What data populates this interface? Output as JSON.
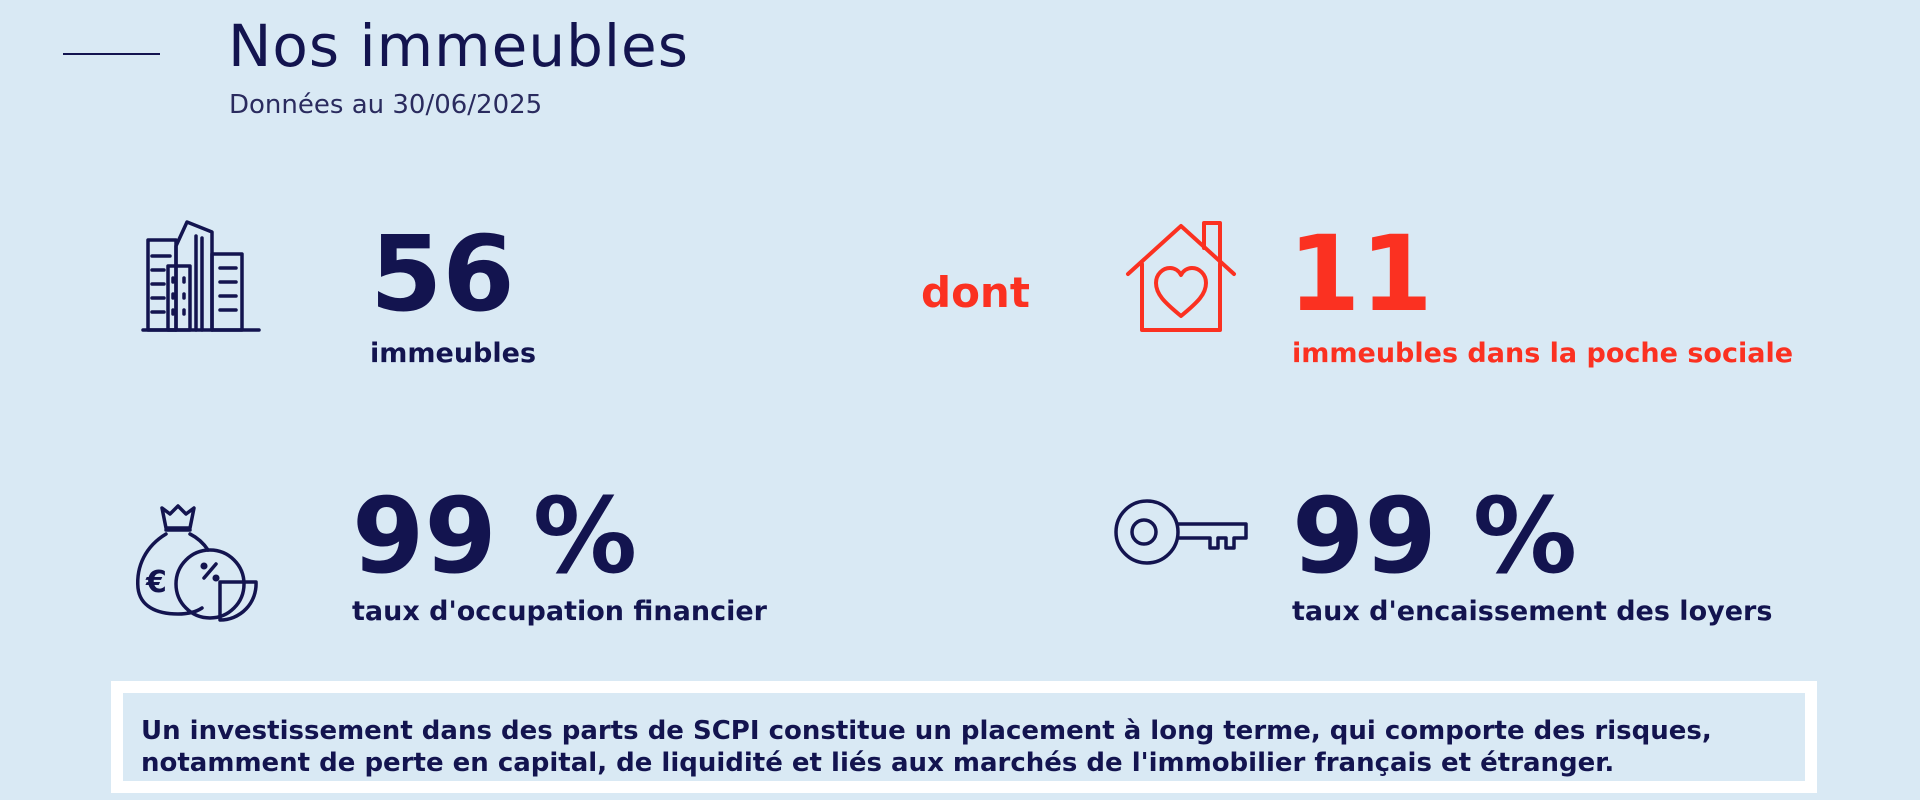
{
  "header": {
    "title": "Nos immeubles",
    "subtitle": "Données au 30/06/2025"
  },
  "stats": {
    "buildings": {
      "value": "56",
      "label": "immeubles",
      "icon": "buildings-icon"
    },
    "connector": "dont",
    "social": {
      "value": "11",
      "label": "immeubles dans la poche sociale",
      "icon": "house-heart-icon"
    },
    "occupancy": {
      "value": "99 %",
      "label": "taux d'occupation financier",
      "icon": "money-bag-chart-icon"
    },
    "collection": {
      "value": "99 %",
      "label": "taux d'encaissement des loyers",
      "icon": "key-icon"
    }
  },
  "disclaimer": {
    "line1": "Un investissement dans des parts de SCPI constitue un placement à long terme, qui comporte des risques,",
    "line2": "notamment de perte en capital, de liquidité et liés aux marchés de l'immobilier français et étranger."
  },
  "colors": {
    "navy": "#13144f",
    "accent_red": "#fb3121",
    "background": "#d9e9f4"
  }
}
